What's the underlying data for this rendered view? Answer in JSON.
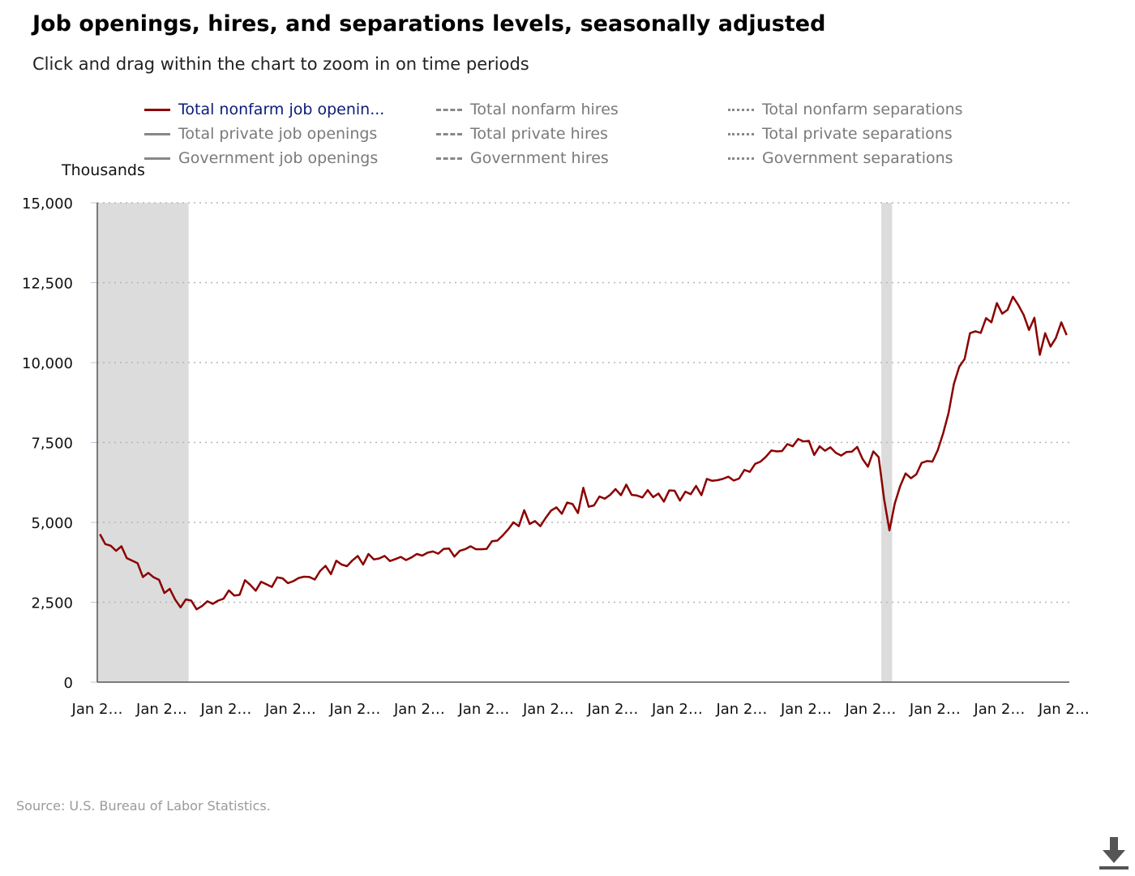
{
  "title": "Job openings, hires, and separations levels, seasonally adjusted",
  "subtitle": "Click and drag within the chart to zoom in on time periods",
  "legend": [
    {
      "label": "Total nonfarm job openin...",
      "style": "solid",
      "active": true
    },
    {
      "label": "Total nonfarm hires",
      "style": "dashed",
      "active": false
    },
    {
      "label": "Total nonfarm separations",
      "style": "dotted",
      "active": false
    },
    {
      "label": "Total private job openings",
      "style": "solid",
      "active": false
    },
    {
      "label": "Total private hires",
      "style": "dashed",
      "active": false
    },
    {
      "label": "Total private separations",
      "style": "dotted",
      "active": false
    },
    {
      "label": "Government job openings",
      "style": "solid",
      "active": false
    },
    {
      "label": "Government hires",
      "style": "dashed",
      "active": false
    },
    {
      "label": "Government separations",
      "style": "dotted",
      "active": false
    }
  ],
  "source": "Source: U.S. Bureau of Labor Statistics.",
  "download_icon": "download-icon",
  "chart_data": {
    "type": "line",
    "ylabel": "Thousands",
    "ylim": [
      0,
      15000
    ],
    "yticks": [
      0,
      2500,
      5000,
      7500,
      10000,
      12500,
      15000
    ],
    "ytick_labels": [
      "0",
      "2,500",
      "5,000",
      "7,500",
      "10,000",
      "12,500",
      "15,000"
    ],
    "xlim": [
      0,
      181
    ],
    "xticks": [
      0,
      12,
      24,
      36,
      48,
      60,
      72,
      84,
      96,
      108,
      120,
      132,
      144,
      156,
      168,
      180
    ],
    "xtick_labels": [
      "Jan 2…",
      "Jan 2…",
      "Jan 2…",
      "Jan 2…",
      "Jan 2…",
      "Jan 2…",
      "Jan 2…",
      "Jan 2…",
      "Jan 2…",
      "Jan 2…",
      "Jan 2…",
      "Jan 2…",
      "Jan 2…",
      "Jan 2…",
      "Jan 2…",
      "Jan 2…"
    ],
    "grid": true,
    "line_color": "#8b0000",
    "shade_color": "#dcdcdc",
    "recessions": [
      [
        0,
        17
      ],
      [
        146,
        148
      ]
    ],
    "series": [
      {
        "name": "Total nonfarm job openin...",
        "values": [
          4630,
          4320,
          4270,
          4110,
          4250,
          3880,
          3800,
          3720,
          3290,
          3420,
          3280,
          3200,
          2790,
          2920,
          2580,
          2340,
          2590,
          2550,
          2280,
          2380,
          2530,
          2450,
          2550,
          2610,
          2870,
          2710,
          2730,
          3190,
          3040,
          2860,
          3140,
          3060,
          2980,
          3280,
          3250,
          3100,
          3160,
          3260,
          3300,
          3290,
          3210,
          3480,
          3640,
          3380,
          3800,
          3680,
          3630,
          3810,
          3950,
          3680,
          4010,
          3840,
          3870,
          3950,
          3790,
          3850,
          3920,
          3820,
          3900,
          4010,
          3960,
          4050,
          4090,
          4020,
          4170,
          4180,
          3930,
          4110,
          4160,
          4250,
          4160,
          4160,
          4170,
          4410,
          4430,
          4590,
          4780,
          5000,
          4880,
          5380,
          4950,
          5040,
          4880,
          5140,
          5370,
          5470,
          5270,
          5620,
          5570,
          5290,
          6080,
          5490,
          5530,
          5810,
          5740,
          5860,
          6040,
          5850,
          6180,
          5860,
          5840,
          5780,
          6010,
          5790,
          5900,
          5650,
          6000,
          5990,
          5680,
          5960,
          5880,
          6140,
          5850,
          6360,
          6300,
          6320,
          6360,
          6430,
          6310,
          6370,
          6640,
          6580,
          6830,
          6900,
          7050,
          7250,
          7220,
          7230,
          7450,
          7380,
          7610,
          7530,
          7550,
          7110,
          7380,
          7240,
          7350,
          7180,
          7090,
          7200,
          7210,
          7360,
          6980,
          6740,
          7220,
          7040,
          5730,
          4750,
          5590,
          6130,
          6530,
          6380,
          6500,
          6860,
          6920,
          6900,
          7260,
          7780,
          8420,
          9330,
          9870,
          10110,
          10920,
          10980,
          10930,
          11390,
          11260,
          11860,
          11530,
          11650,
          12060,
          11800,
          11490,
          11020,
          11400,
          10240,
          10920,
          10500,
          10770,
          11260,
          10860
        ]
      }
    ]
  }
}
